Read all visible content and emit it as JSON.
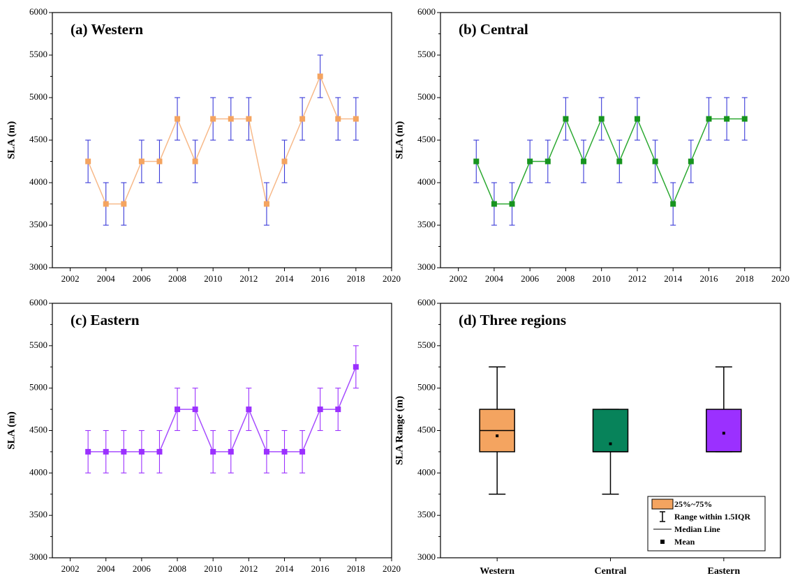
{
  "chart_data": [
    {
      "type": "line",
      "title": "(a) Western",
      "ylabel": "SLA (m)",
      "x": [
        2003,
        2004,
        2005,
        2006,
        2007,
        2008,
        2009,
        2010,
        2011,
        2012,
        2013,
        2014,
        2015,
        2016,
        2017,
        2018
      ],
      "values": [
        4250,
        3750,
        3750,
        4250,
        4250,
        4750,
        4250,
        4750,
        4750,
        4750,
        3750,
        4250,
        4750,
        5250,
        4750,
        4750
      ],
      "errors": [
        250,
        250,
        250,
        250,
        250,
        250,
        250,
        250,
        250,
        250,
        250,
        250,
        250,
        250,
        250,
        250
      ],
      "color": "#f4a460",
      "line_color": "#f7b989",
      "error_color": "#3a3ad8",
      "xlim": [
        2001,
        2020
      ],
      "xticks": [
        2002,
        2004,
        2006,
        2008,
        2010,
        2012,
        2014,
        2016,
        2018,
        2020
      ],
      "ylim": [
        3000,
        6000
      ],
      "yticks": [
        3000,
        3500,
        4000,
        4500,
        5000,
        5500,
        6000
      ]
    },
    {
      "type": "line",
      "title": "(b) Central",
      "ylabel": "SLA (m)",
      "x": [
        2003,
        2004,
        2005,
        2006,
        2007,
        2008,
        2009,
        2010,
        2011,
        2012,
        2013,
        2014,
        2015,
        2016,
        2017,
        2018
      ],
      "values": [
        4250,
        3750,
        3750,
        4250,
        4250,
        4750,
        4250,
        4750,
        4250,
        4750,
        4250,
        3750,
        4250,
        4750,
        4750,
        4750
      ],
      "errors": [
        250,
        250,
        250,
        250,
        250,
        250,
        250,
        250,
        250,
        250,
        250,
        250,
        250,
        250,
        250,
        250
      ],
      "color": "#17941f",
      "line_color": "#2aa830",
      "error_color": "#3a3ad8",
      "xlim": [
        2001,
        2020
      ],
      "xticks": [
        2002,
        2004,
        2006,
        2008,
        2010,
        2012,
        2014,
        2016,
        2018,
        2020
      ],
      "ylim": [
        3000,
        6000
      ],
      "yticks": [
        3000,
        3500,
        4000,
        4500,
        5000,
        5500,
        6000
      ]
    },
    {
      "type": "line",
      "title": "(c) Eastern",
      "ylabel": "SLA (m)",
      "x": [
        2003,
        2004,
        2005,
        2006,
        2007,
        2008,
        2009,
        2010,
        2011,
        2012,
        2013,
        2014,
        2015,
        2016,
        2017,
        2018
      ],
      "values": [
        4250,
        4250,
        4250,
        4250,
        4250,
        4750,
        4750,
        4250,
        4250,
        4750,
        4250,
        4250,
        4250,
        4750,
        4750,
        5250
      ],
      "errors": [
        250,
        250,
        250,
        250,
        250,
        250,
        250,
        250,
        250,
        250,
        250,
        250,
        250,
        250,
        250,
        250
      ],
      "color": "#9b30ff",
      "line_color": "#a64dff",
      "error_color": "#9b30ff",
      "xlim": [
        2001,
        2020
      ],
      "xticks": [
        2002,
        2004,
        2006,
        2008,
        2010,
        2012,
        2014,
        2016,
        2018,
        2020
      ],
      "ylim": [
        3000,
        6000
      ],
      "yticks": [
        3000,
        3500,
        4000,
        4500,
        5000,
        5500,
        6000
      ]
    },
    {
      "type": "box",
      "title": "(d) Three regions",
      "ylabel": "SLA Range (m)",
      "categories": [
        "Western",
        "Central",
        "Eastern"
      ],
      "boxes": [
        {
          "whisker_low": 3750,
          "q1": 4250,
          "median": 4500,
          "q3": 4750,
          "whisker_high": 5250,
          "mean": 4437.5,
          "color": "#f4a460"
        },
        {
          "whisker_low": 3750,
          "q1": 4250,
          "median": 4250,
          "q3": 4750,
          "whisker_high": 4750,
          "mean": 4343.75,
          "color": "#07835a"
        },
        {
          "whisker_low": 4250,
          "q1": 4250,
          "median": 4250,
          "q3": 4750,
          "whisker_high": 5250,
          "mean": 4468.75,
          "color": "#9b30ff"
        }
      ],
      "legend": {
        "labels": [
          "25%~75%",
          "Range within 1.5IQR",
          "Median Line",
          "Mean"
        ],
        "position": "lower right"
      },
      "ylim": [
        3000,
        6000
      ],
      "yticks": [
        3000,
        3500,
        4000,
        4500,
        5000,
        5500,
        6000
      ]
    }
  ]
}
